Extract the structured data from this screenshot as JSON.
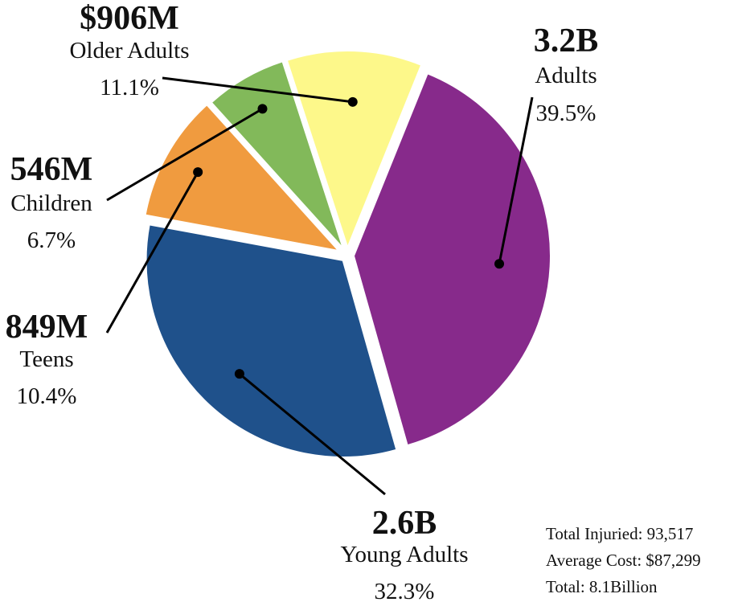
{
  "chart_data": {
    "type": "pie",
    "slices": [
      {
        "label": "Adults",
        "value_label": "3.2B",
        "value": 3.2,
        "percent": 39.5,
        "percent_label": "39.5%",
        "color": "#872a8b"
      },
      {
        "label": "Young Adults",
        "value_label": "2.6B",
        "value": 2.6,
        "percent": 32.3,
        "percent_label": "32.3%",
        "color": "#1f518b"
      },
      {
        "label": "Teens",
        "value_label": "849M",
        "value": 0.849,
        "percent": 10.4,
        "percent_label": "10.4%",
        "color": "#f09b3f"
      },
      {
        "label": "Children",
        "value_label": "546M",
        "value": 0.546,
        "percent": 6.7,
        "percent_label": "6.7%",
        "color": "#82b95a"
      },
      {
        "label": "Older Adults",
        "value_label": "$906M",
        "value": 0.906,
        "percent": 11.1,
        "percent_label": "11.1%",
        "color": "#fdf88a"
      }
    ],
    "summary": {
      "total_injuried": "Total Injuried: 93,517",
      "average_cost": "Average Cost: $87,299",
      "total": "Total: 8.1Billion"
    }
  }
}
